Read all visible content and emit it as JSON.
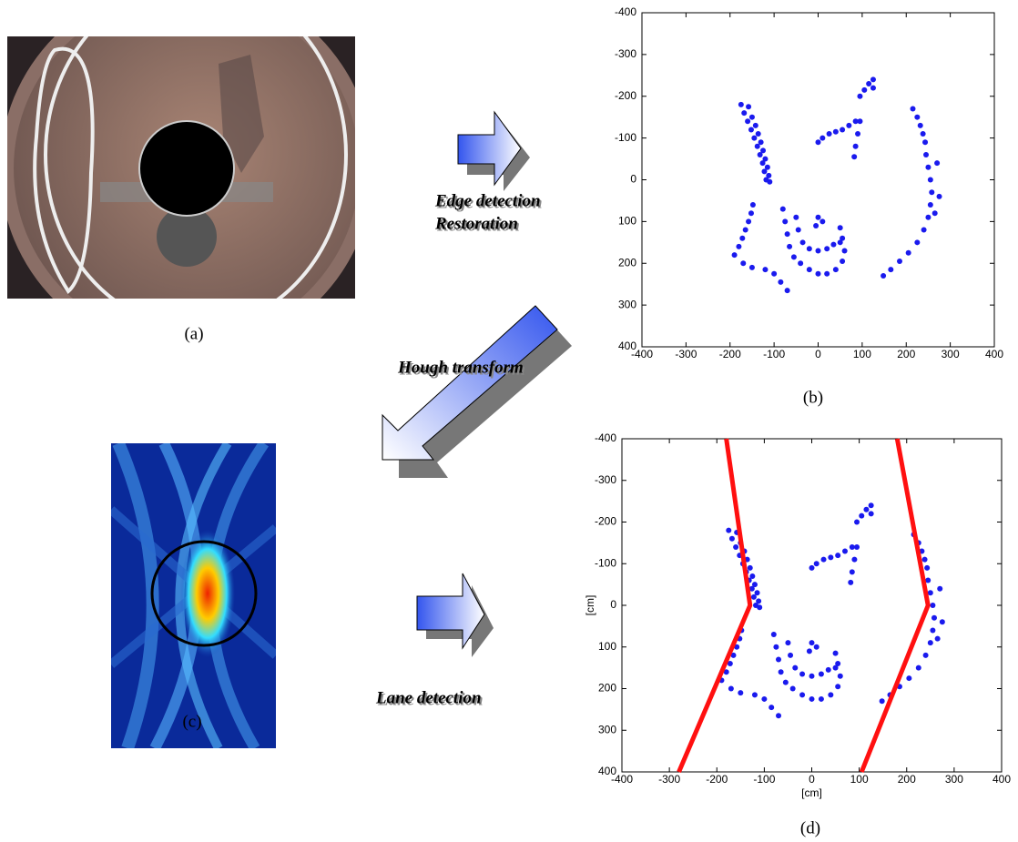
{
  "captions": {
    "a": "(a)",
    "b": "(b)",
    "c": "(c)",
    "d": "(d)"
  },
  "arrows": {
    "edge": "Edge detection",
    "restoration": "Restoration",
    "hough": "Hough transform",
    "lane": "Lane detection"
  },
  "chart_data": [
    {
      "type": "scatter",
      "xlim": [
        -400,
        400
      ],
      "ylim": [
        400,
        -400
      ],
      "xticks": [
        -400,
        -300,
        -200,
        -100,
        0,
        100,
        200,
        300,
        400
      ],
      "yticks": [
        -400,
        -300,
        -200,
        -100,
        0,
        100,
        200,
        300,
        400
      ],
      "series": [
        {
          "color": "#1a1aee",
          "x": [
            -175,
            -168,
            -160,
            -152,
            -145,
            -138,
            -132,
            -126,
            -122,
            -118,
            -158,
            -150,
            -142,
            -136,
            -130,
            -125,
            -120,
            -115,
            -112,
            -110,
            -190,
            -180,
            -172,
            -165,
            -158,
            -152,
            -148,
            -170,
            -150,
            -120,
            -100,
            -85,
            -70,
            -80,
            -75,
            -70,
            -65,
            -55,
            -40,
            -20,
            0,
            20,
            40,
            55,
            60,
            55,
            50,
            -50,
            -45,
            -35,
            -20,
            0,
            20,
            35,
            50,
            0,
            10,
            -5,
            0,
            10,
            25,
            40,
            55,
            70,
            85,
            95,
            90,
            85,
            82,
            95,
            105,
            115,
            125,
            125,
            215,
            225,
            232,
            238,
            243,
            245,
            250,
            255,
            258,
            255,
            250,
            240,
            225,
            205,
            185,
            165,
            148,
            270,
            275,
            265
          ],
          "values": [
            -180,
            -160,
            -140,
            -120,
            -100,
            -80,
            -60,
            -40,
            -20,
            0,
            -175,
            -150,
            -130,
            -110,
            -90,
            -70,
            -50,
            -30,
            -10,
            5,
            180,
            160,
            140,
            120,
            100,
            80,
            60,
            200,
            210,
            215,
            225,
            245,
            265,
            70,
            100,
            130,
            160,
            185,
            200,
            215,
            225,
            225,
            215,
            195,
            170,
            140,
            115,
            90,
            120,
            150,
            165,
            170,
            165,
            155,
            150,
            90,
            100,
            110,
            -90,
            -100,
            -110,
            -115,
            -120,
            -130,
            -140,
            -140,
            -110,
            -80,
            -55,
            -200,
            -215,
            -230,
            -240,
            -220,
            -170,
            -150,
            -130,
            -110,
            -90,
            -60,
            -30,
            0,
            30,
            60,
            90,
            120,
            150,
            175,
            195,
            215,
            230,
            -40,
            40,
            80
          ]
        }
      ]
    },
    {
      "type": "scatter",
      "xlabel": "[cm]",
      "ylabel": "[cm]",
      "xlim": [
        -400,
        400
      ],
      "ylim": [
        400,
        -400
      ],
      "xticks": [
        -400,
        -300,
        -200,
        -100,
        0,
        100,
        200,
        300,
        400
      ],
      "yticks": [
        -400,
        -300,
        -200,
        -100,
        0,
        100,
        200,
        300,
        400
      ],
      "series": [
        {
          "color": "#1a1aee",
          "x": [
            -175,
            -168,
            -160,
            -152,
            -145,
            -138,
            -132,
            -126,
            -122,
            -118,
            -158,
            -150,
            -142,
            -136,
            -130,
            -125,
            -120,
            -115,
            -112,
            -110,
            -190,
            -180,
            -172,
            -165,
            -158,
            -152,
            -148,
            -170,
            -150,
            -120,
            -100,
            -85,
            -70,
            -80,
            -75,
            -70,
            -65,
            -55,
            -40,
            -20,
            0,
            20,
            40,
            55,
            60,
            55,
            50,
            -50,
            -45,
            -35,
            -20,
            0,
            20,
            35,
            50,
            0,
            10,
            -5,
            0,
            10,
            25,
            40,
            55,
            70,
            85,
            95,
            90,
            85,
            82,
            95,
            105,
            115,
            125,
            125,
            215,
            225,
            232,
            238,
            243,
            245,
            250,
            255,
            258,
            255,
            250,
            240,
            225,
            205,
            185,
            165,
            148,
            270,
            275,
            265
          ],
          "values": [
            -180,
            -160,
            -140,
            -120,
            -100,
            -80,
            -60,
            -40,
            -20,
            0,
            -175,
            -150,
            -130,
            -110,
            -90,
            -70,
            -50,
            -30,
            -10,
            5,
            180,
            160,
            140,
            120,
            100,
            80,
            60,
            200,
            210,
            215,
            225,
            245,
            265,
            70,
            100,
            130,
            160,
            185,
            200,
            215,
            225,
            225,
            215,
            195,
            170,
            140,
            115,
            90,
            120,
            150,
            165,
            170,
            165,
            155,
            150,
            90,
            100,
            110,
            -90,
            -100,
            -110,
            -115,
            -120,
            -130,
            -140,
            -140,
            -110,
            -80,
            -55,
            -200,
            -215,
            -230,
            -240,
            -220,
            -170,
            -150,
            -130,
            -110,
            -90,
            -60,
            -30,
            0,
            30,
            60,
            90,
            120,
            150,
            175,
            195,
            215,
            230,
            -40,
            40,
            80
          ]
        },
        {
          "kind": "line",
          "color": "#ff1010",
          "x": [
            -180,
            -130,
            -280
          ],
          "values": [
            -400,
            0,
            400
          ]
        },
        {
          "kind": "line",
          "color": "#ff1010",
          "x": [
            180,
            245,
            105
          ],
          "values": [
            -400,
            0,
            400
          ]
        }
      ]
    }
  ]
}
